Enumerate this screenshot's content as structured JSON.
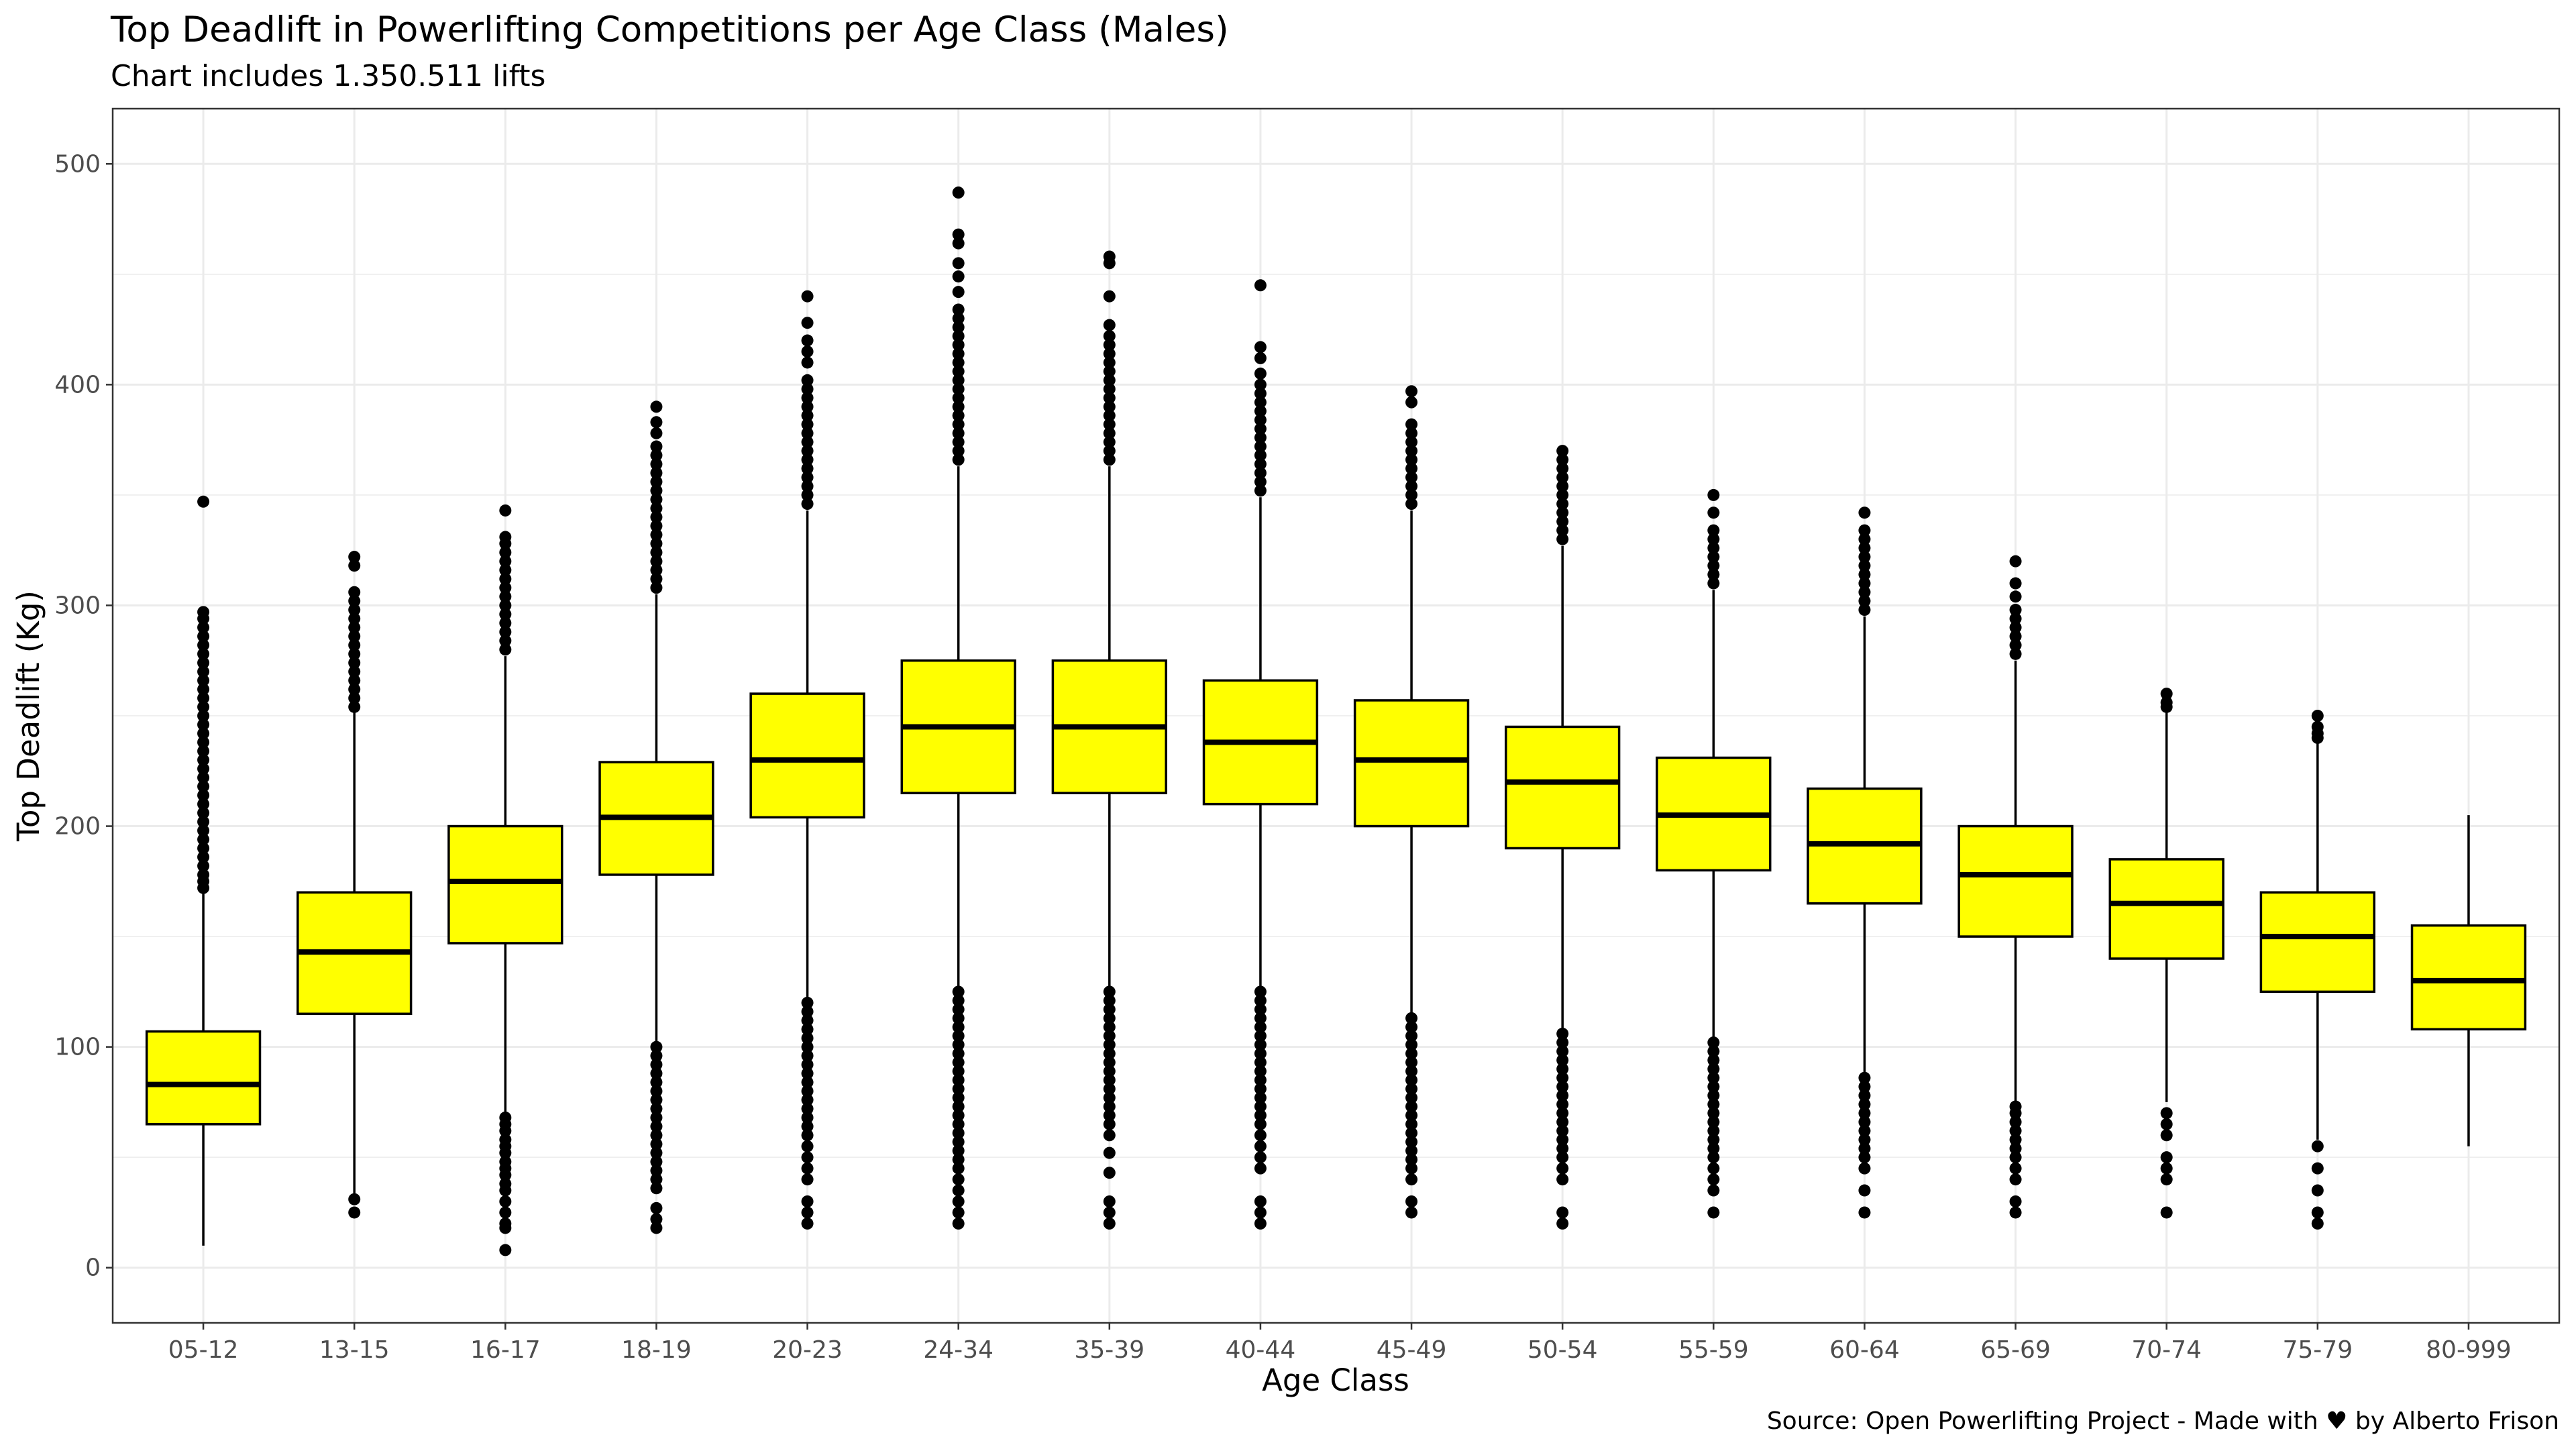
{
  "chart_data": {
    "type": "boxplot",
    "title": "Top Deadlift in Powerlifting Competitions per Age Class (Males)",
    "subtitle": "Chart includes 1.350.511 lifts",
    "xlabel": "Age Class",
    "ylabel": "Top Deadlift (Kg)",
    "caption": "Source: Open Powerlifting Project - Made with ♥ by Alberto Frison",
    "ylim": [
      -25,
      525
    ],
    "yticks": [
      0,
      100,
      200,
      300,
      400,
      500
    ],
    "grid": true,
    "box_fill": "#ffff00",
    "categories": [
      "05-12",
      "13-15",
      "16-17",
      "18-19",
      "20-23",
      "24-34",
      "35-39",
      "40-44",
      "45-49",
      "50-54",
      "55-59",
      "60-64",
      "65-69",
      "70-74",
      "75-79",
      "80-999"
    ],
    "boxes": [
      {
        "lower_whisker": 10,
        "q1": 65,
        "median": 83,
        "q3": 107,
        "upper_whisker": 170,
        "outliers_high": [
          172,
          175,
          178,
          182,
          186,
          190,
          194,
          198,
          202,
          206,
          210,
          214,
          218,
          222,
          226,
          230,
          234,
          238,
          242,
          246,
          250,
          254,
          258,
          262,
          266,
          270,
          274,
          278,
          282,
          286,
          290,
          294,
          297,
          347
        ],
        "outliers_low": []
      },
      {
        "lower_whisker": 33,
        "q1": 115,
        "median": 143,
        "q3": 170,
        "upper_whisker": 252,
        "outliers_high": [
          254,
          258,
          262,
          266,
          270,
          274,
          278,
          282,
          286,
          290,
          294,
          298,
          302,
          306,
          318,
          322
        ],
        "outliers_low": [
          31,
          25
        ]
      },
      {
        "lower_whisker": 70,
        "q1": 147,
        "median": 175,
        "q3": 200,
        "upper_whisker": 277,
        "outliers_high": [
          280,
          284,
          288,
          292,
          296,
          300,
          304,
          308,
          312,
          316,
          320,
          324,
          328,
          331,
          343
        ],
        "outliers_low": [
          68,
          65,
          62,
          58,
          55,
          52,
          48,
          45,
          42,
          38,
          35,
          30,
          25,
          20,
          18,
          8
        ]
      },
      {
        "lower_whisker": 102,
        "q1": 178,
        "median": 204,
        "q3": 229,
        "upper_whisker": 305,
        "outliers_high": [
          308,
          312,
          316,
          320,
          324,
          328,
          332,
          336,
          340,
          344,
          348,
          352,
          356,
          360,
          364,
          368,
          372,
          378,
          383,
          390
        ],
        "outliers_low": [
          100,
          96,
          92,
          88,
          84,
          80,
          76,
          72,
          68,
          64,
          60,
          56,
          52,
          48,
          44,
          40,
          36,
          27,
          22,
          18
        ]
      },
      {
        "lower_whisker": 122,
        "q1": 204,
        "median": 230,
        "q3": 260,
        "upper_whisker": 343,
        "outliers_high": [
          346,
          350,
          354,
          358,
          362,
          366,
          370,
          374,
          378,
          382,
          386,
          390,
          394,
          398,
          402,
          410,
          415,
          420,
          428,
          440
        ],
        "outliers_low": [
          120,
          116,
          112,
          108,
          104,
          100,
          96,
          92,
          88,
          84,
          80,
          76,
          72,
          68,
          64,
          60,
          55,
          50,
          45,
          40,
          30,
          25,
          20
        ]
      },
      {
        "lower_whisker": 127,
        "q1": 215,
        "median": 245,
        "q3": 275,
        "upper_whisker": 363,
        "outliers_high": [
          366,
          370,
          374,
          378,
          382,
          386,
          390,
          394,
          398,
          402,
          406,
          410,
          414,
          418,
          422,
          426,
          430,
          434,
          442,
          449,
          455,
          464,
          468,
          487
        ],
        "outliers_low": [
          125,
          121,
          117,
          113,
          109,
          105,
          101,
          97,
          93,
          89,
          85,
          81,
          77,
          73,
          69,
          65,
          61,
          57,
          53,
          49,
          45,
          40,
          35,
          30,
          25,
          20
        ]
      },
      {
        "lower_whisker": 127,
        "q1": 215,
        "median": 245,
        "q3": 275,
        "upper_whisker": 363,
        "outliers_high": [
          366,
          370,
          374,
          378,
          382,
          386,
          390,
          394,
          398,
          402,
          406,
          410,
          414,
          418,
          422,
          427,
          440,
          455,
          458
        ],
        "outliers_low": [
          125,
          121,
          117,
          113,
          109,
          105,
          101,
          97,
          93,
          89,
          85,
          81,
          77,
          73,
          69,
          65,
          60,
          52,
          43,
          30,
          25,
          20
        ]
      },
      {
        "lower_whisker": 127,
        "q1": 210,
        "median": 238,
        "q3": 266,
        "upper_whisker": 349,
        "outliers_high": [
          352,
          356,
          360,
          364,
          368,
          372,
          376,
          380,
          384,
          388,
          392,
          396,
          400,
          405,
          412,
          417,
          445
        ],
        "outliers_low": [
          125,
          121,
          117,
          113,
          109,
          105,
          101,
          97,
          93,
          89,
          85,
          81,
          77,
          73,
          69,
          65,
          60,
          55,
          50,
          45,
          30,
          25,
          20
        ]
      },
      {
        "lower_whisker": 115,
        "q1": 200,
        "median": 230,
        "q3": 257,
        "upper_whisker": 343,
        "outliers_high": [
          346,
          350,
          354,
          358,
          362,
          366,
          370,
          374,
          378,
          382,
          392,
          397
        ],
        "outliers_low": [
          113,
          109,
          105,
          101,
          97,
          93,
          89,
          85,
          81,
          77,
          73,
          69,
          65,
          61,
          57,
          53,
          49,
          45,
          40,
          30,
          25
        ]
      },
      {
        "lower_whisker": 108,
        "q1": 190,
        "median": 220,
        "q3": 245,
        "upper_whisker": 327,
        "outliers_high": [
          330,
          334,
          338,
          342,
          346,
          350,
          354,
          358,
          362,
          366,
          370
        ],
        "outliers_low": [
          106,
          102,
          98,
          94,
          90,
          86,
          82,
          78,
          74,
          70,
          66,
          62,
          58,
          54,
          50,
          45,
          40,
          25,
          20
        ]
      },
      {
        "lower_whisker": 104,
        "q1": 180,
        "median": 205,
        "q3": 231,
        "upper_whisker": 307,
        "outliers_high": [
          310,
          314,
          318,
          322,
          326,
          330,
          334,
          342,
          350
        ],
        "outliers_low": [
          102,
          98,
          94,
          90,
          86,
          82,
          78,
          74,
          70,
          66,
          62,
          58,
          54,
          50,
          45,
          40,
          35,
          25
        ]
      },
      {
        "lower_whisker": 88,
        "q1": 165,
        "median": 192,
        "q3": 217,
        "upper_whisker": 295,
        "outliers_high": [
          298,
          302,
          306,
          310,
          314,
          318,
          322,
          326,
          330,
          334,
          342
        ],
        "outliers_low": [
          86,
          82,
          78,
          74,
          70,
          66,
          62,
          58,
          54,
          50,
          45,
          35,
          25
        ]
      },
      {
        "lower_whisker": 75,
        "q1": 150,
        "median": 178,
        "q3": 200,
        "upper_whisker": 275,
        "outliers_high": [
          278,
          282,
          286,
          290,
          294,
          298,
          304,
          310,
          320
        ],
        "outliers_low": [
          73,
          70,
          66,
          62,
          58,
          54,
          50,
          45,
          40,
          30,
          25
        ]
      },
      {
        "lower_whisker": 75,
        "q1": 140,
        "median": 165,
        "q3": 185,
        "upper_whisker": 252,
        "outliers_high": [
          254,
          256,
          260
        ],
        "outliers_low": [
          70,
          65,
          60,
          50,
          45,
          40,
          25
        ]
      },
      {
        "lower_whisker": 58,
        "q1": 125,
        "median": 150,
        "q3": 170,
        "upper_whisker": 238,
        "outliers_high": [
          240,
          242,
          245,
          250
        ],
        "outliers_low": [
          55,
          45,
          35,
          25,
          20
        ]
      },
      {
        "lower_whisker": 55,
        "q1": 108,
        "median": 130,
        "q3": 155,
        "upper_whisker": 205,
        "outliers_high": [],
        "outliers_low": []
      }
    ]
  }
}
